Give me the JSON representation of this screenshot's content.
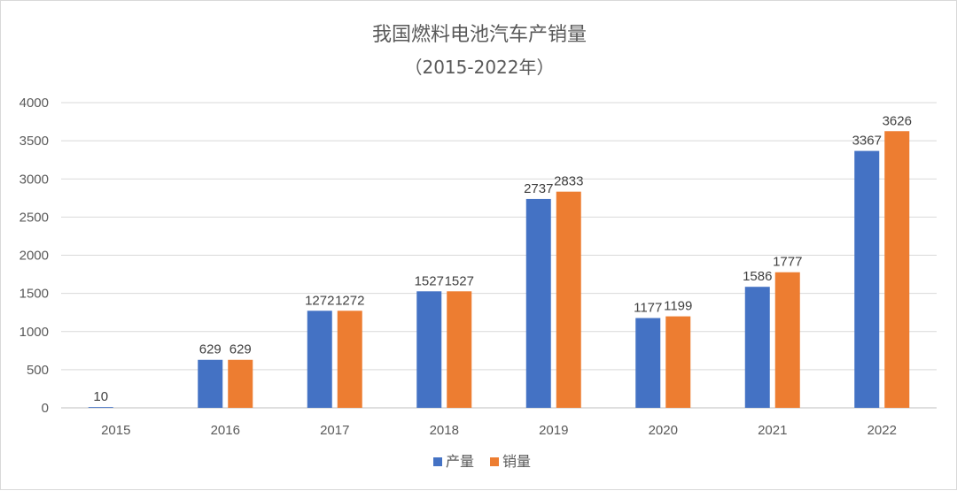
{
  "chart_data": {
    "type": "bar",
    "title": "我国燃料电池汽车产销量",
    "subtitle": "（2015-2022年）",
    "categories": [
      "2015",
      "2016",
      "2017",
      "2018",
      "2019",
      "2020",
      "2021",
      "2022"
    ],
    "series": [
      {
        "name": "产量",
        "color": "#4472C4",
        "values": [
          10,
          629,
          1272,
          1527,
          2737,
          1177,
          1586,
          3367
        ]
      },
      {
        "name": "销量",
        "color": "#ED7D31",
        "values": [
          null,
          629,
          1272,
          1527,
          2833,
          1199,
          1777,
          3626
        ]
      }
    ],
    "ylim": [
      0,
      4000
    ],
    "yticks": [
      0,
      500,
      1000,
      1500,
      2000,
      2500,
      3000,
      3500,
      4000
    ],
    "grid": true,
    "legend_position": "bottom",
    "gridline_color": "#d9d9d9"
  }
}
